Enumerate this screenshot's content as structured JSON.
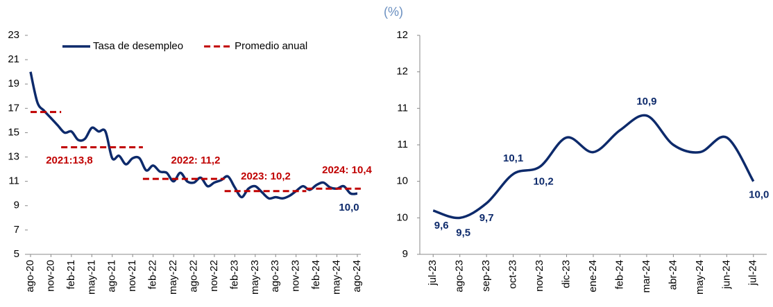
{
  "title": "(%)",
  "chart_data": [
    {
      "type": "line",
      "categories": [
        "ago-20",
        null,
        null,
        "nov-20",
        null,
        null,
        "feb-21",
        null,
        null,
        "may-21",
        null,
        null,
        "ago-21",
        null,
        null,
        "nov-21",
        null,
        null,
        "feb-22",
        null,
        null,
        "may-22",
        null,
        null,
        "ago-22",
        null,
        null,
        "nov-22",
        null,
        null,
        "feb-23",
        null,
        null,
        "may-23",
        null,
        null,
        "ago-23",
        null,
        null,
        "nov-23",
        null,
        null,
        "feb-24",
        null,
        null,
        "may-24",
        null,
        null,
        "ago-24"
      ],
      "series": [
        {
          "name": "Tasa de desempleo",
          "color": "#0d2a6b",
          "style": "solid",
          "values": [
            20.0,
            17.5,
            16.8,
            16.2,
            15.6,
            15.0,
            15.1,
            14.4,
            14.5,
            15.4,
            15.1,
            15.1,
            12.9,
            13.1,
            12.4,
            12.9,
            12.9,
            11.9,
            12.3,
            11.8,
            11.7,
            11.0,
            11.7,
            11.0,
            10.9,
            11.3,
            10.6,
            10.9,
            11.1,
            11.4,
            10.5,
            9.7,
            10.4,
            10.6,
            10.1,
            9.6,
            9.7,
            9.6,
            9.8,
            10.2,
            10.6,
            10.3,
            10.7,
            10.9,
            10.5,
            10.4,
            10.6,
            10.0,
            10.0
          ]
        },
        {
          "name": "Promedio anual",
          "color": "#c00000",
          "style": "dashed",
          "values": [
            16.7,
            16.7,
            16.7,
            16.7,
            16.7,
            13.8,
            13.8,
            13.8,
            13.8,
            13.8,
            13.8,
            13.8,
            13.8,
            13.8,
            13.8,
            13.8,
            13.8,
            11.2,
            11.2,
            11.2,
            11.2,
            11.2,
            11.2,
            11.2,
            11.2,
            11.2,
            11.2,
            11.2,
            11.2,
            10.2,
            10.2,
            10.2,
            10.2,
            10.2,
            10.2,
            10.2,
            10.2,
            10.2,
            10.2,
            10.2,
            10.2,
            10.4,
            10.4,
            10.4,
            10.4,
            10.4,
            10.4,
            10.4,
            10.4
          ]
        }
      ],
      "annotations": [
        "2021:13,8",
        "2022: 11,2",
        "2023: 10,2",
        "2024: 10,4",
        "10,0"
      ],
      "ylim": [
        5,
        23
      ],
      "yticks": [
        5,
        7,
        9,
        11,
        13,
        15,
        17,
        19,
        21,
        23
      ],
      "legend": "top"
    },
    {
      "type": "line",
      "categories": [
        "jul-23",
        "ago-23",
        "sep-23",
        "oct-23",
        "nov-23",
        "dic-23",
        "ene-24",
        "feb-24",
        "mar-24",
        "abr-24",
        "may-24",
        "jun-24",
        "jul-24"
      ],
      "series": [
        {
          "name": null,
          "color": "#0d2a6b",
          "style": "solid",
          "values": [
            9.6,
            9.5,
            9.7,
            10.1,
            10.2,
            10.6,
            10.4,
            10.7,
            10.9,
            10.5,
            10.4,
            10.6,
            10.0
          ],
          "value_labels": [
            "9,6",
            "9,5",
            "9,7",
            "10,1",
            "10,2",
            null,
            null,
            null,
            "10,9",
            null,
            null,
            null,
            "10,0"
          ]
        }
      ],
      "ylim": [
        9,
        12
      ],
      "yticks": [
        9,
        {
          "value": 9.5,
          "label": "10"
        },
        10,
        {
          "value": 10.5,
          "label": "11"
        },
        11,
        {
          "value": 11.5,
          "label": "12"
        },
        12
      ]
    }
  ]
}
